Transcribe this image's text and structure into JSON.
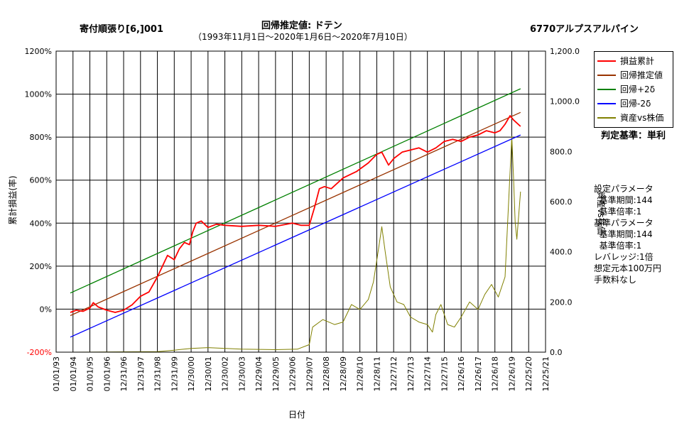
{
  "header": {
    "left_title": "寄付順張り[6,]001",
    "center_title": "回帰推定値: ドテン",
    "date_range": "（1993年11月1日～2020年1月6日～2020年7月10日）",
    "right_title": "6770アルプスアルパイン"
  },
  "judge_label": "判定基準：単利",
  "side_info": [
    "設定パラメータ",
    "  基準期間:144",
    "  基準倍率:1",
    "基準パラメータ",
    "  基準期間:144",
    "  基準倍率:1",
    "レバレッジ:1倍",
    "想定元本100万円",
    "手数料なし"
  ],
  "colors": {
    "pnl": "#ff0000",
    "regression": "#993300",
    "upper": "#008000",
    "lower": "#0000ff",
    "price": "#808000",
    "negative_tick": "#ff0000"
  },
  "chart_data": {
    "type": "line",
    "xlabel": "日付",
    "ylabel": "累計損益(率)",
    "y2label": "資産vs株価",
    "ylim": [
      -200,
      1200
    ],
    "y2lim": [
      0,
      1200
    ],
    "y_ticks": [
      "-200%",
      "0%",
      "200%",
      "400%",
      "600%",
      "800%",
      "1000%",
      "1200%"
    ],
    "y_tick_values": [
      -200,
      0,
      200,
      400,
      600,
      800,
      1000,
      1200
    ],
    "y2_ticks": [
      "0.0",
      "200.0",
      "400.0",
      "600.0",
      "800.0",
      "1,000.0",
      "1,200.0"
    ],
    "y2_tick_values": [
      0,
      200,
      400,
      600,
      800,
      1000,
      1200
    ],
    "x_ticks": [
      "01/01/93",
      "01/01/94",
      "01/01/95",
      "01/01/96",
      "12/31/96",
      "12/31/97",
      "12/31/98",
      "12/31/99",
      "12/30/00",
      "12/30/01",
      "12/30/02",
      "12/30/03",
      "12/29/04",
      "12/29/05",
      "12/29/06",
      "12/29/07",
      "12/28/08",
      "12/28/09",
      "12/28/10",
      "12/28/11",
      "12/27/12",
      "12/27/13",
      "12/27/14",
      "12/27/15",
      "12/26/16",
      "12/26/17",
      "12/26/18",
      "12/26/19",
      "12/25/20",
      "12/25/21"
    ],
    "x_domain": [
      1993.0,
      2022.0
    ],
    "grid": true,
    "legend_position": "top-right",
    "series": [
      {
        "name": "損益累計",
        "axis": "left",
        "points": [
          [
            1993.84,
            -15
          ],
          [
            1994.2,
            -5
          ],
          [
            1994.6,
            -10
          ],
          [
            1995.0,
            5
          ],
          [
            1995.2,
            30
          ],
          [
            1995.5,
            10
          ],
          [
            1996.0,
            -5
          ],
          [
            1996.5,
            -15
          ],
          [
            1997.0,
            -5
          ],
          [
            1997.5,
            20
          ],
          [
            1998.0,
            60
          ],
          [
            1998.5,
            80
          ],
          [
            1999.0,
            150
          ],
          [
            1999.3,
            200
          ],
          [
            1999.6,
            250
          ],
          [
            2000.0,
            230
          ],
          [
            2000.3,
            280
          ],
          [
            2000.6,
            310
          ],
          [
            2000.9,
            300
          ],
          [
            2001.1,
            360
          ],
          [
            2001.3,
            400
          ],
          [
            2001.6,
            410
          ],
          [
            2002.0,
            380
          ],
          [
            2002.5,
            395
          ],
          [
            2003.0,
            390
          ],
          [
            2004.0,
            385
          ],
          [
            2005.0,
            390
          ],
          [
            2006.0,
            385
          ],
          [
            2007.0,
            400
          ],
          [
            2007.5,
            390
          ],
          [
            2008.0,
            390
          ],
          [
            2008.3,
            470
          ],
          [
            2008.6,
            560
          ],
          [
            2008.9,
            570
          ],
          [
            2009.3,
            560
          ],
          [
            2010.0,
            610
          ],
          [
            2010.8,
            640
          ],
          [
            2011.5,
            680
          ],
          [
            2012.0,
            720
          ],
          [
            2012.3,
            730
          ],
          [
            2012.7,
            670
          ],
          [
            2013.0,
            700
          ],
          [
            2013.5,
            730
          ],
          [
            2014.0,
            740
          ],
          [
            2014.5,
            750
          ],
          [
            2015.0,
            730
          ],
          [
            2015.5,
            750
          ],
          [
            2016.0,
            780
          ],
          [
            2016.5,
            790
          ],
          [
            2017.0,
            780
          ],
          [
            2017.5,
            800
          ],
          [
            2018.0,
            810
          ],
          [
            2018.5,
            830
          ],
          [
            2019.0,
            820
          ],
          [
            2019.3,
            830
          ],
          [
            2019.6,
            860
          ],
          [
            2019.9,
            900
          ],
          [
            2020.1,
            880
          ],
          [
            2020.52,
            850
          ]
        ]
      },
      {
        "name": "回帰推定値",
        "axis": "left",
        "points": [
          [
            1993.84,
            -30
          ],
          [
            2020.52,
            915
          ]
        ]
      },
      {
        "name": "回帰+2δ",
        "axis": "left",
        "points": [
          [
            1993.84,
            75
          ],
          [
            2020.52,
            1025
          ]
        ]
      },
      {
        "name": "回帰-2δ",
        "axis": "left",
        "points": [
          [
            1993.84,
            -130
          ],
          [
            2020.52,
            810
          ]
        ]
      },
      {
        "name": "資産vs株価",
        "axis": "right",
        "points": [
          [
            1993.84,
            0
          ],
          [
            1999.0,
            2
          ],
          [
            2000.0,
            8
          ],
          [
            2001.0,
            15
          ],
          [
            2002.0,
            18
          ],
          [
            2004.0,
            12
          ],
          [
            2006.0,
            10
          ],
          [
            2007.3,
            12
          ],
          [
            2008.0,
            30
          ],
          [
            2008.2,
            100
          ],
          [
            2008.8,
            130
          ],
          [
            2009.5,
            110
          ],
          [
            2010.0,
            120
          ],
          [
            2010.5,
            190
          ],
          [
            2011.0,
            170
          ],
          [
            2011.5,
            210
          ],
          [
            2011.8,
            280
          ],
          [
            2012.1,
            410
          ],
          [
            2012.3,
            500
          ],
          [
            2012.5,
            400
          ],
          [
            2012.8,
            260
          ],
          [
            2013.2,
            200
          ],
          [
            2013.6,
            190
          ],
          [
            2014.0,
            140
          ],
          [
            2014.5,
            120
          ],
          [
            2015.0,
            110
          ],
          [
            2015.3,
            80
          ],
          [
            2015.5,
            150
          ],
          [
            2015.8,
            190
          ],
          [
            2016.2,
            110
          ],
          [
            2016.6,
            100
          ],
          [
            2017.0,
            140
          ],
          [
            2017.5,
            200
          ],
          [
            2018.0,
            170
          ],
          [
            2018.4,
            230
          ],
          [
            2018.8,
            270
          ],
          [
            2019.2,
            220
          ],
          [
            2019.6,
            300
          ],
          [
            2019.85,
            650
          ],
          [
            2020.0,
            860
          ],
          [
            2020.1,
            700
          ],
          [
            2020.2,
            520
          ],
          [
            2020.3,
            450
          ],
          [
            2020.52,
            640
          ]
        ]
      }
    ]
  }
}
